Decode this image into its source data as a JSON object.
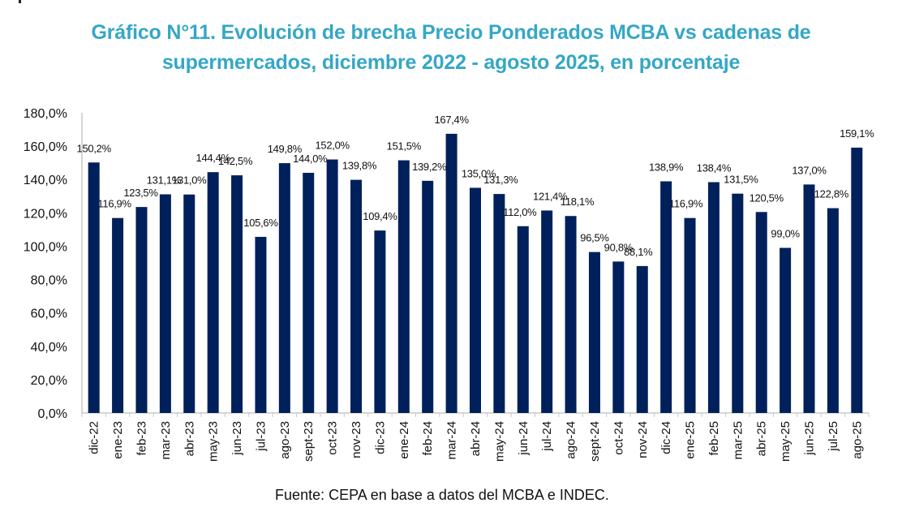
{
  "chart_data": {
    "type": "bar",
    "title": "Gráfico N°11.  Evolución de brecha Precio Ponderados MCBA vs cadenas de supermercados, diciembre 2022 - agosto 2025, en porcentaje",
    "title_lines": [
      "Gráfico N°11.  Evolución de brecha Precio Ponderados MCBA vs cadenas de",
      "supermercados, diciembre 2022 - agosto 2025, en porcentaje"
    ],
    "xlabel": "",
    "ylabel": "",
    "ylim": [
      0,
      180
    ],
    "yticks": [
      0,
      20,
      40,
      60,
      80,
      100,
      120,
      140,
      160,
      180
    ],
    "ytick_labels": [
      "0,0%",
      "20,0%",
      "40,0%",
      "60,0%",
      "80,0%",
      "100,0%",
      "120,0%",
      "140,0%",
      "160,0%",
      "180,0%"
    ],
    "grid": false,
    "legend": "none",
    "bar_color": "#00205b",
    "categories": [
      "dic-22",
      "ene-23",
      "feb-23",
      "mar-23",
      "abr-23",
      "may-23",
      "jun-23",
      "jul-23",
      "ago-23",
      "sept-23",
      "oct-23",
      "nov-23",
      "dic-23",
      "ene-24",
      "feb-24",
      "mar-24",
      "abr-24",
      "may-24",
      "jun-24",
      "jul-24",
      "ago-24",
      "sept-24",
      "oct-24",
      "nov-24",
      "dic-24",
      "ene-25",
      "feb-25",
      "mar-25",
      "abr-25",
      "may-25",
      "jun-25",
      "jul-25",
      "ago-25"
    ],
    "values": [
      150.2,
      116.9,
      123.5,
      131.1,
      131.0,
      144.4,
      142.5,
      105.6,
      149.8,
      144.0,
      152.0,
      139.8,
      109.4,
      151.5,
      139.2,
      167.4,
      135.0,
      131.3,
      112.0,
      121.4,
      118.1,
      96.5,
      90.8,
      88.1,
      138.9,
      116.9,
      138.4,
      131.5,
      120.5,
      99.0,
      137.0,
      122.8,
      159.1
    ],
    "data_labels": [
      "150,2%",
      "116,9%",
      "123,5%",
      "131,1%",
      "131,0%",
      "144,4%",
      "142,5%",
      "105,6%",
      "149,8%",
      "144,0%",
      "152,0%",
      "139,8%",
      "109,4%",
      "151,5%",
      "139,2%",
      "167,4%",
      "135,0%",
      "131,3%",
      "112,0%",
      "121,4%",
      "118,1%",
      "96,5%",
      "90,8%",
      "88,1%",
      "138,9%",
      "116,9%",
      "138,4%",
      "131,5%",
      "120,5%",
      "99,0%",
      "137,0%",
      "122,8%",
      "159,1%"
    ],
    "source": "Fuente: CEPA en base a datos del MCBA e INDEC."
  }
}
